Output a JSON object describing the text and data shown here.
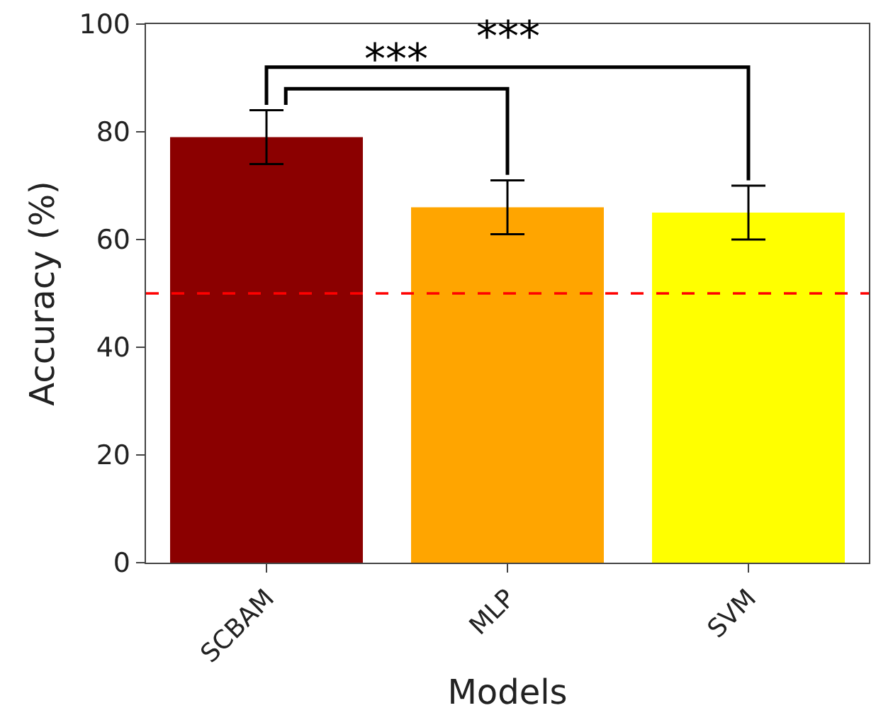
{
  "chart_data": {
    "type": "bar",
    "xlabel": "Models",
    "ylabel": "Accuracy (%)",
    "categories": [
      "SCBAM",
      "MLP",
      "SVM"
    ],
    "values": [
      79,
      66,
      65
    ],
    "colors": [
      "#8b0000",
      "#ffa500",
      "#ffff00"
    ],
    "errors": [
      5,
      5,
      5
    ],
    "ylim": [
      0,
      100
    ],
    "yticks": [
      0,
      20,
      40,
      60,
      80,
      100
    ],
    "ref_lines": [
      {
        "axis": "y",
        "value": 50,
        "color": "#ff0000",
        "line_style": "dashed"
      }
    ],
    "annotations": [
      "***",
      "***"
    ]
  }
}
